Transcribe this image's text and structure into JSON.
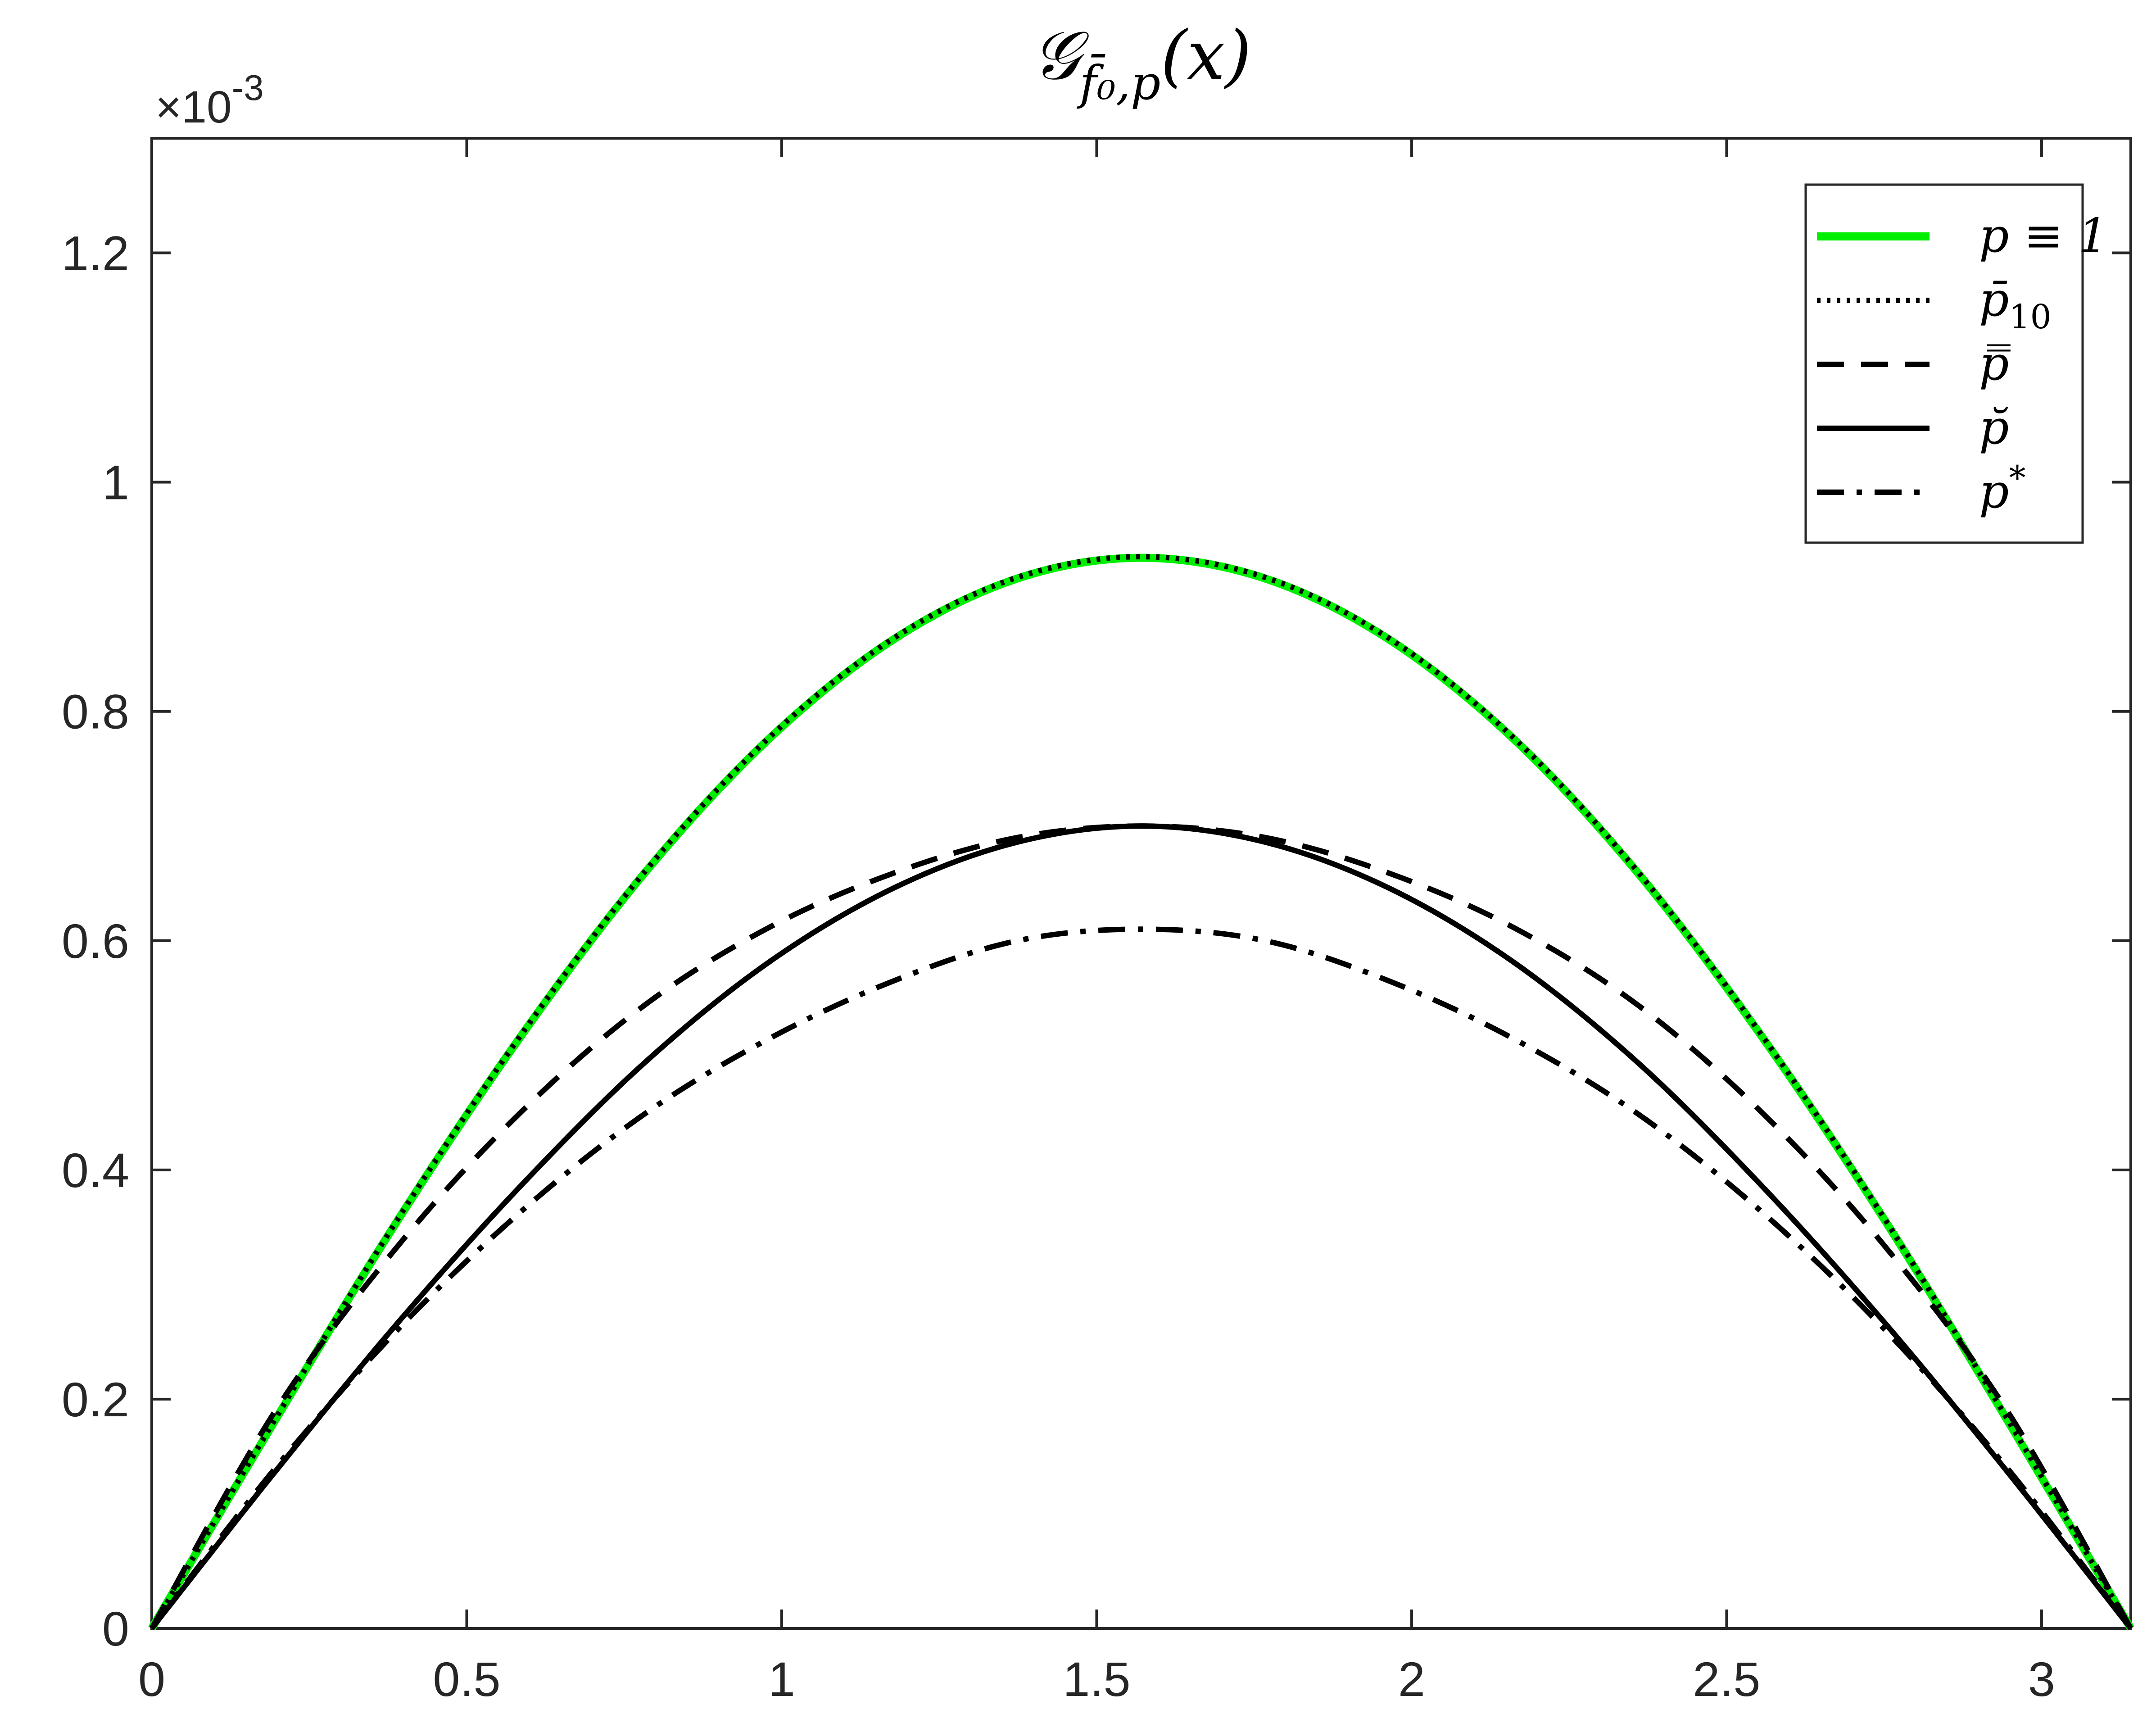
{
  "chart_data": {
    "type": "line",
    "title": "𝒢",
    "title_sub": "f̄₀,p",
    "title_arg": "(x)",
    "y_exponent": "×10",
    "y_exponent_power": "-3",
    "xlim": [
      0,
      3.14159
    ],
    "ylim": [
      0,
      1.3
    ],
    "xticks": [
      0,
      0.5,
      1,
      1.5,
      2,
      2.5,
      3
    ],
    "xtick_labels": [
      "0",
      "0.5",
      "1",
      "1.5",
      "2",
      "2.5",
      "3"
    ],
    "yticks": [
      0,
      0.2,
      0.4,
      0.6,
      0.8,
      1,
      1.2
    ],
    "ytick_labels": [
      "0",
      "0.2",
      "0.4",
      "0.6",
      "0.8",
      "1",
      "1.2"
    ],
    "grid": false,
    "legend_position": "top-right",
    "x": [
      0,
      0.19635,
      0.3927,
      0.58905,
      0.7854,
      0.98175,
      1.1781,
      1.37445,
      1.5708,
      1.76715,
      1.9635,
      2.15985,
      2.3562,
      2.55254,
      2.74889,
      2.94524,
      3.14159
    ],
    "series": [
      {
        "name": "p ≡ 1",
        "label_main": "p ≡ 1",
        "label_sub": "",
        "style": "solid-thick",
        "color": "#00ee00",
        "values": [
          0,
          0.182,
          0.358,
          0.519,
          0.661,
          0.777,
          0.863,
          0.916,
          0.934,
          0.916,
          0.863,
          0.777,
          0.661,
          0.519,
          0.358,
          0.182,
          0
        ]
      },
      {
        "name": "p̄10",
        "label_main": "p̄",
        "label_sub": "10",
        "style": "dotted",
        "color": "#000000",
        "values": [
          0,
          0.183,
          0.359,
          0.52,
          0.662,
          0.778,
          0.864,
          0.917,
          0.935,
          0.917,
          0.864,
          0.778,
          0.662,
          0.52,
          0.359,
          0.183,
          0
        ]
      },
      {
        "name": "p̿",
        "label_main": "p̿",
        "label_sub": "",
        "style": "dashed",
        "color": "#000000",
        "values": [
          0,
          0.19,
          0.335,
          0.452,
          0.545,
          0.612,
          0.659,
          0.69,
          0.7,
          0.69,
          0.659,
          0.612,
          0.545,
          0.452,
          0.335,
          0.19,
          0
        ]
      },
      {
        "name": "p̆",
        "label_main": "p̆",
        "label_sub": "",
        "style": "solid",
        "color": "#000000",
        "values": [
          0,
          0.137,
          0.268,
          0.388,
          0.495,
          0.582,
          0.646,
          0.686,
          0.7,
          0.686,
          0.646,
          0.582,
          0.495,
          0.388,
          0.268,
          0.137,
          0
        ]
      },
      {
        "name": "p*",
        "label_main": "p",
        "label_sub": "*",
        "style": "dashdot",
        "color": "#000000",
        "values": [
          0,
          0.14,
          0.262,
          0.365,
          0.45,
          0.515,
          0.565,
          0.6,
          0.61,
          0.6,
          0.565,
          0.515,
          0.45,
          0.365,
          0.262,
          0.14,
          0
        ]
      }
    ]
  }
}
